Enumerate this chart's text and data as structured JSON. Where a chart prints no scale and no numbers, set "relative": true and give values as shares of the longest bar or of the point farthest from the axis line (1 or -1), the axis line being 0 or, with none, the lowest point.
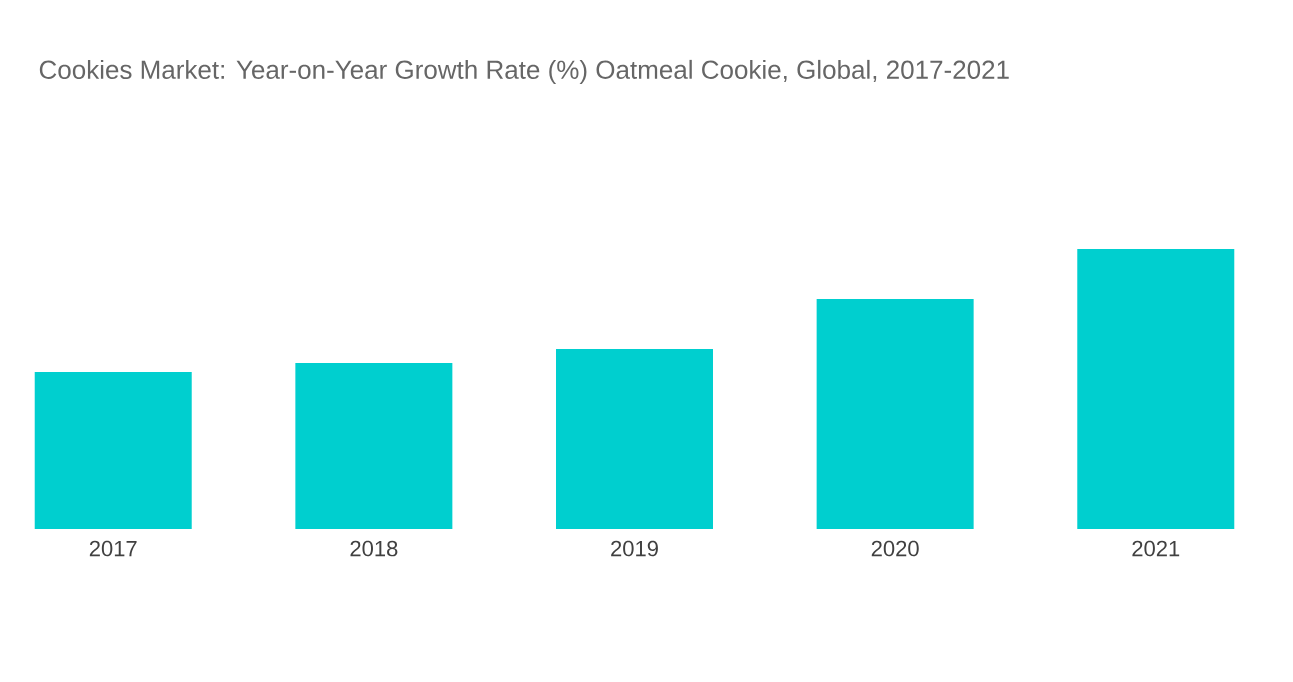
{
  "chart_data": {
    "type": "bar",
    "title": "Cookies Market: Year-on-Year Growth Rate (%) Oatmeal Cookie, Global, 2017-2021",
    "categories": [
      "2017",
      "2018",
      "2019",
      "2020",
      "2021"
    ],
    "values": [
      0.561,
      0.593,
      0.643,
      0.821,
      1
    ],
    "color": "#00cfcf",
    "relative": true
  }
}
